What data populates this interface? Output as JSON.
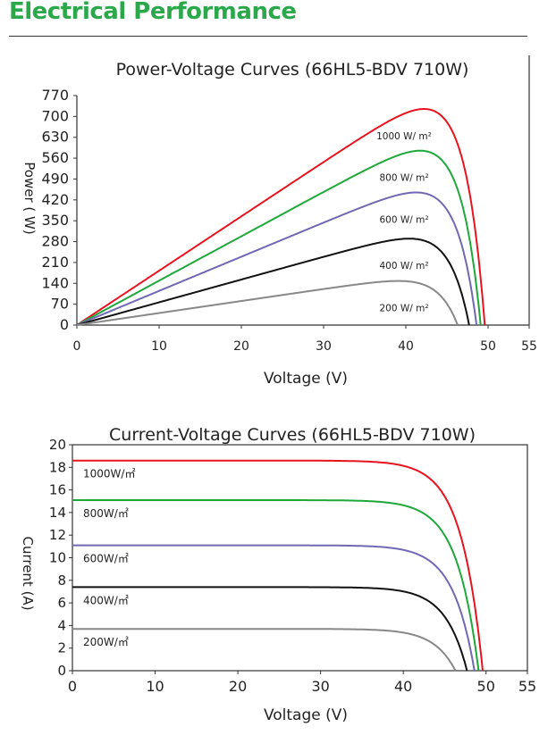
{
  "header": {
    "title": "Electrical Performance",
    "accent": "#2aa84a"
  },
  "chart_data": [
    {
      "type": "line",
      "title": "Power-Voltage Curves (66HL5-BDV 710W)",
      "xlabel": "Voltage (V)",
      "ylabel": "Power ( W)",
      "xlim": [
        0,
        55
      ],
      "ylim": [
        0,
        770
      ],
      "xticks": [
        "0",
        "10",
        "20",
        "30",
        "40",
        "50",
        "55"
      ],
      "yticks": [
        "0",
        "70",
        "140",
        "210",
        "280",
        "350",
        "420",
        "490",
        "560",
        "630",
        "700",
        "770"
      ],
      "series": [
        {
          "name": "1000 W/ m²",
          "color": "#e8131e",
          "isc": 18.6,
          "voc": 49.6,
          "vmp": 40.5,
          "pmax": 725
        },
        {
          "name": "800 W/ m²",
          "color": "#1fa83a",
          "isc": 15.1,
          "voc": 49.1,
          "vmp": 40.5,
          "pmax": 585
        },
        {
          "name": "600 W/ m²",
          "color": "#7168b4",
          "isc": 11.1,
          "voc": 48.6,
          "vmp": 40.3,
          "pmax": 445
        },
        {
          "name": "400 W/ m²",
          "color": "#111111",
          "isc": 7.4,
          "voc": 47.7,
          "vmp": 40.0,
          "pmax": 290
        },
        {
          "name": "200 W/ m²",
          "color": "#888888",
          "isc": 3.7,
          "voc": 46.3,
          "vmp": 39.5,
          "pmax": 148
        }
      ]
    },
    {
      "type": "line",
      "title": "Current-Voltage Curves (66HL5-BDV 710W)",
      "xlabel": "Voltage (V)",
      "ylabel": "Current (A)",
      "xlim": [
        0,
        55
      ],
      "ylim": [
        0,
        20
      ],
      "xticks": [
        "0",
        "10",
        "20",
        "30",
        "40",
        "50",
        "55"
      ],
      "yticks": [
        "0",
        "2",
        "4",
        "6",
        "8",
        "10",
        "12",
        "14",
        "16",
        "18",
        "20"
      ],
      "series": [
        {
          "name": "1000W/㎡",
          "color": "#e8131e",
          "isc": 18.6,
          "voc": 49.6
        },
        {
          "name": "800W/㎡",
          "color": "#1fa83a",
          "isc": 15.1,
          "voc": 49.1
        },
        {
          "name": "600W/㎡",
          "color": "#7168b4",
          "isc": 11.1,
          "voc": 48.6
        },
        {
          "name": "400W/㎡",
          "color": "#111111",
          "isc": 7.4,
          "voc": 47.7
        },
        {
          "name": "200W/㎡",
          "color": "#888888",
          "isc": 3.7,
          "voc": 46.3
        }
      ]
    }
  ]
}
